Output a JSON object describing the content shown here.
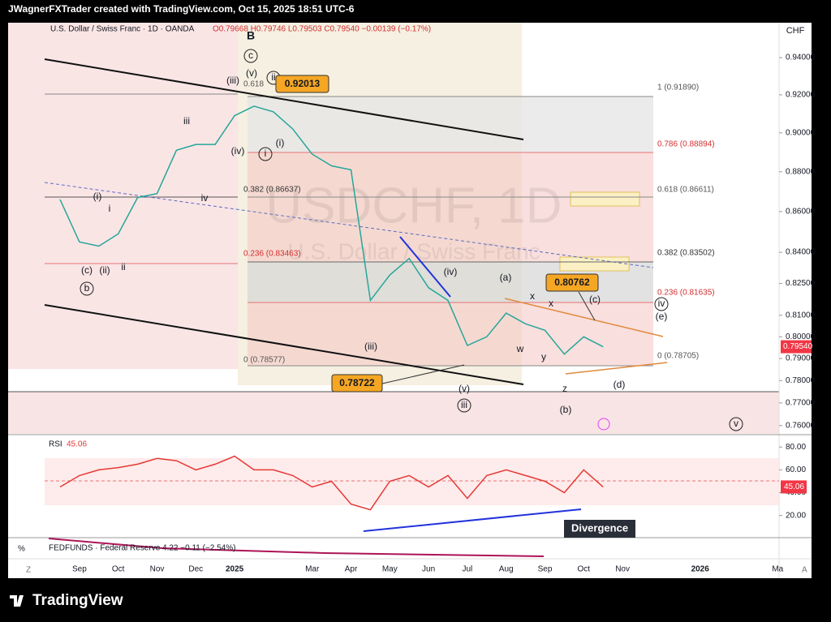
{
  "header": {
    "credit": "JWagnerFXTrader created with TradingView.com, Oct 15, 2025 18:51 UTC-6",
    "watermark_symbol": "USDCHF, 1D",
    "watermark_name": "U.S. Dollar / Swiss Franc"
  },
  "chart_data": [
    {
      "type": "line",
      "title": "U.S. Dollar / Swiss Franc · 1D · OANDA",
      "subtitle": "O0.79668 H0.79746 L0.79503 C0.79540 −0.00139 (−0.17%)",
      "currency": "CHF",
      "color": "#26a69a",
      "categories": [
        null,
        "Sep",
        null,
        "Oct",
        null,
        "Nov",
        null,
        "Dec",
        null,
        "2025",
        null,
        null,
        null,
        "Mar",
        null,
        "Apr",
        null,
        "May",
        null,
        "Jun",
        null,
        "Jul",
        null,
        "Aug",
        null,
        "Sep",
        null,
        "Oct",
        null,
        "Nov",
        null,
        null,
        null,
        "2026",
        null,
        null,
        null,
        "Ma"
      ],
      "values": [
        0.866,
        0.845,
        0.843,
        0.849,
        0.867,
        0.869,
        0.891,
        0.894,
        0.894,
        0.909,
        0.914,
        0.911,
        0.902,
        0.889,
        0.883,
        0.881,
        0.817,
        0.829,
        0.837,
        0.823,
        0.817,
        0.796,
        0.8,
        0.811,
        0.806,
        0.803,
        0.792,
        0.8,
        0.7954,
        null,
        null,
        null,
        null,
        null,
        null,
        null,
        null,
        null
      ],
      "value_labels": [
        null,
        null,
        null,
        null,
        null,
        null,
        null,
        null,
        null,
        null,
        null,
        null,
        null,
        null,
        null,
        null,
        null,
        null,
        null,
        null,
        null,
        null,
        null,
        null,
        null,
        null,
        null,
        null,
        "0.79540",
        null,
        null,
        null,
        null,
        null,
        null,
        null,
        null,
        null
      ],
      "log_scale": true,
      "ylim": [
        0.756,
        0.956
      ],
      "yticks": [
        {
          "value": 0.94,
          "label": "0.94000"
        },
        {
          "value": 0.92,
          "label": "0.92000"
        },
        {
          "value": 0.9,
          "label": "0.90000"
        },
        {
          "value": 0.88,
          "label": "0.88000"
        },
        {
          "value": 0.86,
          "label": "0.86000"
        },
        {
          "value": 0.84,
          "label": "0.84000"
        },
        {
          "value": 0.825,
          "label": "0.82500"
        },
        {
          "value": 0.81,
          "label": "0.81000"
        },
        {
          "value": 0.8,
          "label": "0.80000"
        },
        {
          "value": 0.79,
          "label": "0.79000"
        },
        {
          "value": 0.78,
          "label": "0.78000"
        },
        {
          "value": 0.77,
          "label": "0.77000"
        },
        {
          "value": 0.76,
          "label": "0.76000"
        }
      ]
    },
    {
      "type": "line",
      "title": "RSI",
      "color": "#e53935",
      "values": [
        45,
        55,
        60,
        62,
        65,
        70,
        68,
        60,
        65,
        72,
        60,
        60,
        55,
        45,
        50,
        30,
        25,
        50,
        55,
        45,
        55,
        35,
        55,
        60,
        55,
        50,
        40,
        60,
        45.06
      ],
      "ylim": [
        2,
        88
      ],
      "yticks": [
        {
          "value": 80,
          "label": "80.00"
        },
        {
          "value": 60,
          "label": "60.00"
        },
        {
          "value": 40,
          "label": "40.00"
        },
        {
          "value": 20,
          "label": "20.00"
        }
      ]
    }
  ],
  "fib_labels": [
    "1 (0.91890)",
    "0.786 (0.88894)",
    "0.618 (0.86611)",
    "0.382 (0.83502)",
    "0.236 (0.81635)",
    "0 (0.78705)",
    "0.618",
    "0.382 (0.86637)",
    "0.236 (0.83463)",
    "0 (0.78577)"
  ],
  "wave_labels": [
    "B",
    "c",
    "(v)",
    "(iii)",
    "ii",
    "(ii)",
    "iii",
    "(iv)",
    "i",
    "(i)",
    "iv",
    "(i)",
    "i",
    "(c)",
    "(ii)",
    "ii",
    "b",
    "(iv)",
    "(iii)",
    "(v)",
    "iii",
    "(a)",
    "x",
    "x",
    "w",
    "y",
    "z",
    "(b)",
    "(c)",
    "iv",
    "(e)",
    "(d)",
    "v"
  ],
  "price_boxes": [
    "0.92013",
    "0.80762",
    "0.78722"
  ],
  "divergence": "Divergence",
  "fedfunds": "FEDFUNDS · Federal Reserve 4.22 −0.11 (−2.54%)",
  "footer": {
    "percent": "%",
    "z": "Z",
    "a": "A",
    "logo": "TradingView"
  }
}
